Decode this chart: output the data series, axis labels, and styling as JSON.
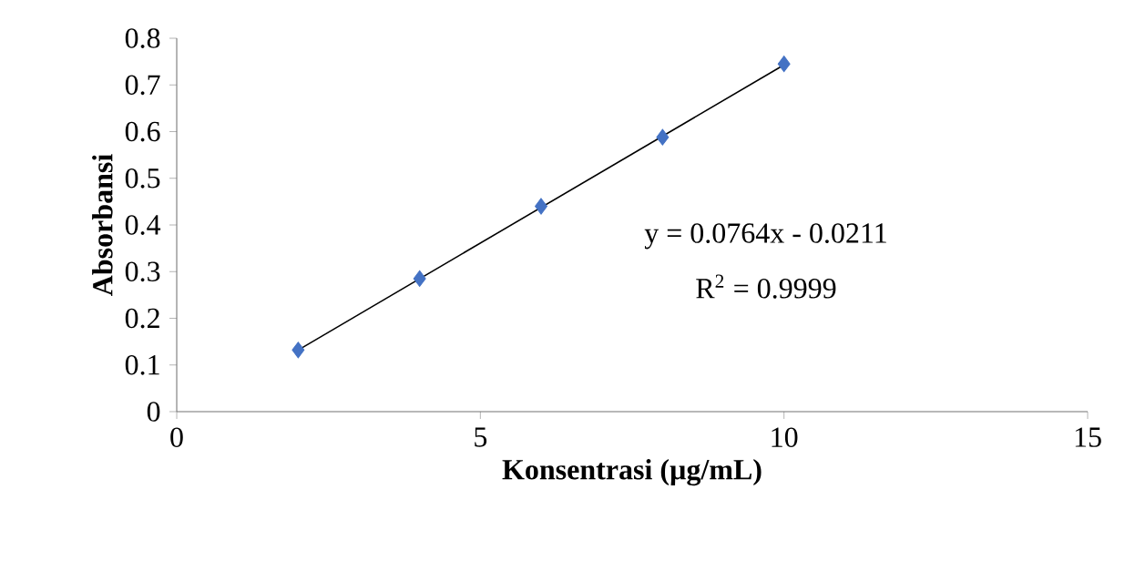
{
  "chart_data": {
    "type": "scatter",
    "xlabel": "Konsentrasi (µg/mL)",
    "ylabel": "Absorbansi",
    "series": [
      {
        "color": "#4472c4",
        "marker": "diamond",
        "x": [
          2,
          4,
          6,
          8,
          10
        ],
        "values": [
          0.132,
          0.285,
          0.44,
          0.588,
          0.745
        ]
      },
      {
        "type": "line",
        "color": "#000000",
        "marker": "none",
        "x": [
          2,
          10
        ],
        "values": [
          0.132,
          0.743
        ]
      }
    ],
    "xlim": [
      0,
      15
    ],
    "xticks": [
      0,
      5,
      10,
      15
    ],
    "ylim": [
      0,
      0.8
    ],
    "yticks": [
      0,
      0.1,
      0.2,
      0.3,
      0.4,
      0.5,
      0.6,
      0.7,
      0.8
    ],
    "annotations": [
      "y = 0.0764x - 0.0211",
      "R$^{2}$ = 0.9999"
    ]
  }
}
